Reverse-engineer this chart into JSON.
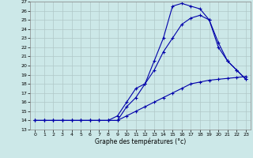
{
  "xlabel": "Graphe des températures (°c)",
  "xlim": [
    -0.5,
    23.5
  ],
  "ylim": [
    13,
    27
  ],
  "yticks": [
    13,
    14,
    15,
    16,
    17,
    18,
    19,
    20,
    21,
    22,
    23,
    24,
    25,
    26,
    27
  ],
  "xticks": [
    0,
    1,
    2,
    3,
    4,
    5,
    6,
    7,
    8,
    9,
    10,
    11,
    12,
    13,
    14,
    15,
    16,
    17,
    18,
    19,
    20,
    21,
    22,
    23
  ],
  "bg_color": "#cce8e8",
  "grid_color": "#b0c8c8",
  "line_color": "#0000aa",
  "line1_x": [
    0,
    1,
    2,
    3,
    4,
    5,
    6,
    7,
    8,
    9,
    10,
    11,
    12,
    13,
    14,
    15,
    16,
    17,
    18,
    19,
    20,
    21,
    22,
    23
  ],
  "line1_y": [
    14,
    14,
    14,
    14,
    14,
    14,
    14,
    14,
    14,
    14,
    14.5,
    15,
    15.5,
    16,
    16.5,
    17,
    17.5,
    18,
    18.2,
    18.4,
    18.5,
    18.6,
    18.7,
    18.8
  ],
  "line2_x": [
    0,
    1,
    2,
    3,
    4,
    5,
    6,
    7,
    8,
    9,
    10,
    11,
    12,
    13,
    14,
    15,
    16,
    17,
    18,
    19,
    20,
    21,
    22,
    23
  ],
  "line2_y": [
    14,
    14,
    14,
    14,
    14,
    14,
    14,
    14,
    14,
    14.5,
    16,
    17.5,
    18,
    19.5,
    21.5,
    23,
    24.5,
    25.2,
    25.5,
    25.0,
    22.5,
    20.5,
    19.5,
    18.5
  ],
  "line3_x": [
    0,
    1,
    2,
    3,
    4,
    5,
    6,
    7,
    8,
    9,
    10,
    11,
    12,
    13,
    14,
    15,
    16,
    17,
    18,
    19,
    20,
    21,
    22,
    23
  ],
  "line3_y": [
    14,
    14,
    14,
    14,
    14,
    14,
    14,
    14,
    14,
    14,
    15.5,
    16.5,
    18,
    20.5,
    23,
    26.5,
    26.8,
    26.5,
    26.2,
    25.0,
    22,
    20.5,
    19.5,
    18.5
  ]
}
